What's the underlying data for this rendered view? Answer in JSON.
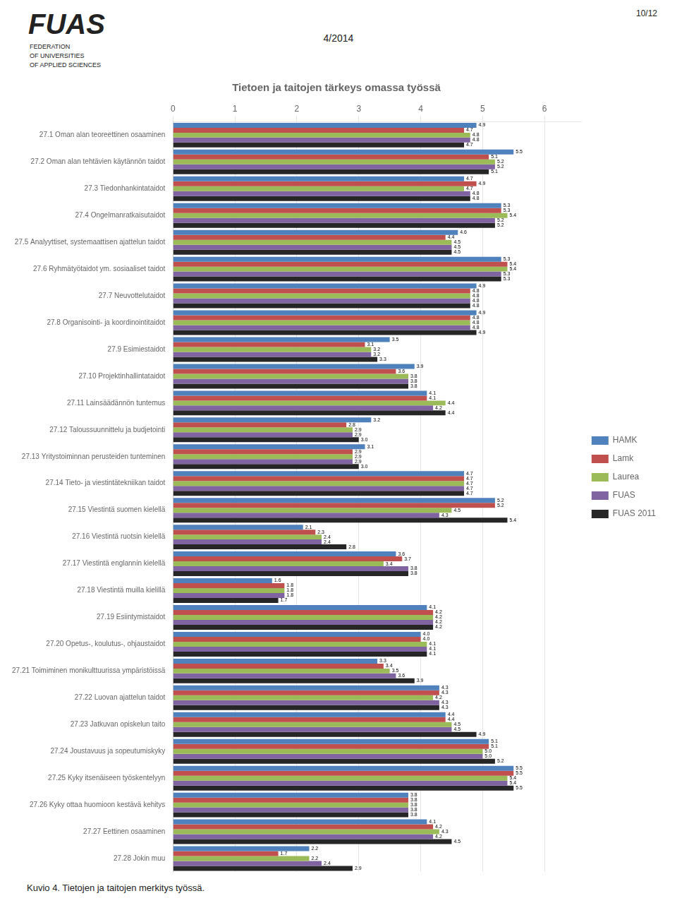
{
  "chart_data": {
    "type": "bar",
    "orientation": "horizontal",
    "title": "Tietoen ja taitojen tärkeys omassa työssä",
    "subtitle": "4/2014",
    "annotations": [
      "10/12",
      "Kuvio 4. Tietojen ja taitojen merkitys työssä.",
      "FUAS",
      "FEDERATION\nOF UNIVERSITIES\nOF APPLIED SCIENCES"
    ],
    "categories": [
      "27.1 Oman alan teoreettinen osaaminen",
      "27.2 Oman alan tehtävien käytännön taidot",
      "27.3 Tiedonhankintataidot",
      "27.4 Ongelmanratkaisutaidot",
      "27.5 Analyyttiset, systemaattisen ajattelun taidot",
      "27.6 Ryhmätyötaidot ym. sosiaaliset taidot",
      "27.7 Neuvottelutaidot",
      "27.8 Organisointi- ja koordinointitaidot",
      "27.9 Esimiestaidot",
      "27.10 Projektinhallintataidot",
      "27.11 Lainsäädännön tuntemus",
      "27.12 Taloussuunnittelu ja budjetointi",
      "27.13 Yritystoiminnan perusteiden tunteminen",
      "27.14 Tieto- ja viestintätekniikan taidot",
      "27.15 Viestintä suomen kielellä",
      "27.16 Viestintä ruotsin kielellä",
      "27.17 Viestintä englannin kielellä",
      "27.18 Viestintä muilla kielillä",
      "27.19 Esiintymistaidot",
      "27.20 Opetus-, koulutus-, ohjaustaidot",
      "27.21 Toimiminen monikulttuurissa ympäristöissä",
      "27.22 Luovan ajattelun taidot",
      "27.23 Jatkuvan opiskelun taito",
      "27.24 Joustavuus ja sopeutumiskyky",
      "27.25 Kyky itsenäiseen työskentelyyn",
      "27.26 Kyky ottaa huomioon kestävä kehitys",
      "27.27 Eettinen osaaminen",
      "27.28 Jokin muu"
    ],
    "series": [
      {
        "name": "HAMK",
        "color": "#4f81bd",
        "values": [
          4.9,
          5.5,
          4.7,
          5.3,
          4.6,
          5.3,
          4.9,
          4.9,
          3.5,
          3.9,
          4.1,
          3.2,
          3.1,
          4.7,
          5.2,
          2.1,
          3.6,
          1.6,
          4.1,
          4.0,
          3.3,
          4.3,
          4.4,
          5.1,
          5.5,
          3.8,
          4.1,
          2.2
        ],
        "value_labels": [
          "4.9",
          "5.5",
          "4.7",
          "5.3",
          "4.6",
          "5.3",
          "4.9",
          "4.9",
          "3.5",
          "3.9",
          "4.1",
          "3.2",
          "3.1",
          "4.7",
          "5.2",
          "2.1",
          "3.6",
          "1.6",
          "4.1",
          "4.0",
          "3.3",
          "4.3",
          "4.4",
          "5.1",
          "5.5",
          "3.8",
          "4.1",
          "2.2"
        ]
      },
      {
        "name": "Lamk",
        "color": "#c0504d",
        "values": [
          4.7,
          5.1,
          4.9,
          5.3,
          4.4,
          5.4,
          4.8,
          4.8,
          3.1,
          3.6,
          4.1,
          2.8,
          2.9,
          4.7,
          5.2,
          2.3,
          3.7,
          1.8,
          4.2,
          4.0,
          3.4,
          4.3,
          4.4,
          5.1,
          5.5,
          3.8,
          4.2,
          1.7
        ],
        "value_labels": [
          "4.7",
          "5.1",
          "4.9",
          "5.3",
          "4.4",
          "5.4",
          "4.8",
          "4.8",
          "3.1",
          "3.6",
          "4.1",
          "2.8",
          "2.9",
          "4.7",
          "5.2",
          "2.3",
          "3.7",
          "1.8",
          "4.2",
          "4.0",
          "3.4",
          "4.3",
          "4.4",
          "5.1",
          "5.5",
          "3.8",
          "4.2",
          "1.7"
        ]
      },
      {
        "name": "Laurea",
        "color": "#9bbb59",
        "values": [
          4.8,
          5.2,
          4.7,
          5.4,
          4.5,
          5.4,
          4.8,
          4.8,
          3.2,
          3.8,
          4.4,
          2.9,
          2.9,
          4.7,
          4.5,
          2.4,
          3.4,
          1.8,
          4.2,
          4.1,
          3.5,
          4.2,
          4.5,
          5.0,
          5.4,
          3.8,
          4.3,
          2.2
        ],
        "value_labels": [
          "4.8",
          "5.2",
          "4.7",
          "5.4",
          "4.5",
          "5.4",
          "4.8",
          "4.8",
          "3.2",
          "3.8",
          "4.4",
          "2.9",
          "2.9",
          "4.7",
          "4.5",
          "2.4",
          "3.4",
          "1.8",
          "4.2",
          "4.1",
          "3.5",
          "4.2",
          "4.5",
          "5.0",
          "5.4",
          "3.8",
          "4.3",
          "2.2"
        ]
      },
      {
        "name": "FUAS",
        "color": "#8064a2",
        "values": [
          4.8,
          5.2,
          4.8,
          5.2,
          4.5,
          5.3,
          4.8,
          4.8,
          3.2,
          3.8,
          4.2,
          2.9,
          2.9,
          4.7,
          4.3,
          2.4,
          3.8,
          1.8,
          4.2,
          4.1,
          3.6,
          4.3,
          4.5,
          5.0,
          5.4,
          3.8,
          4.2,
          2.4
        ],
        "value_labels": [
          "4.8",
          "5.2",
          "4.8",
          "5.2",
          "4.5",
          "5.3",
          "4.8",
          "4.8",
          "3.2",
          "3.8",
          "4.2",
          "2.9",
          "2.9",
          "4.7",
          "4.3",
          "2.4",
          "3.8",
          "1.8",
          "4.2",
          "4.1",
          "3.6",
          "4.3",
          "4.5",
          "5.0",
          "5.4",
          "3.8",
          "4.2",
          "2.4"
        ]
      },
      {
        "name": "FUAS 2011",
        "color": "#262626",
        "values": [
          4.7,
          5.1,
          4.8,
          5.2,
          4.5,
          5.3,
          4.8,
          4.9,
          3.3,
          3.8,
          4.4,
          3.0,
          3.0,
          4.7,
          5.4,
          2.8,
          3.8,
          1.7,
          4.2,
          4.1,
          3.9,
          4.3,
          4.9,
          5.2,
          5.5,
          3.8,
          4.5,
          2.9
        ],
        "value_labels": [
          "4.7",
          "5.1",
          "4.8",
          "5.2",
          "4.5",
          "5.3",
          "4.8",
          "4.9",
          "3.3",
          "3.8",
          "4.4",
          "3.0",
          "3.0",
          "4.7",
          "5.4",
          "2.8",
          "3.8",
          "1.7",
          "4.2",
          "4.1",
          "3.9",
          "4.3",
          "4.9",
          "5.2",
          "5.5",
          "3.8",
          "4.5",
          "2.9"
        ]
      }
    ],
    "xlim": [
      0,
      6.6
    ],
    "xticks": [
      0,
      1,
      2,
      3,
      4,
      5,
      6
    ],
    "grid": true,
    "legend": "right",
    "data_labels": true
  }
}
